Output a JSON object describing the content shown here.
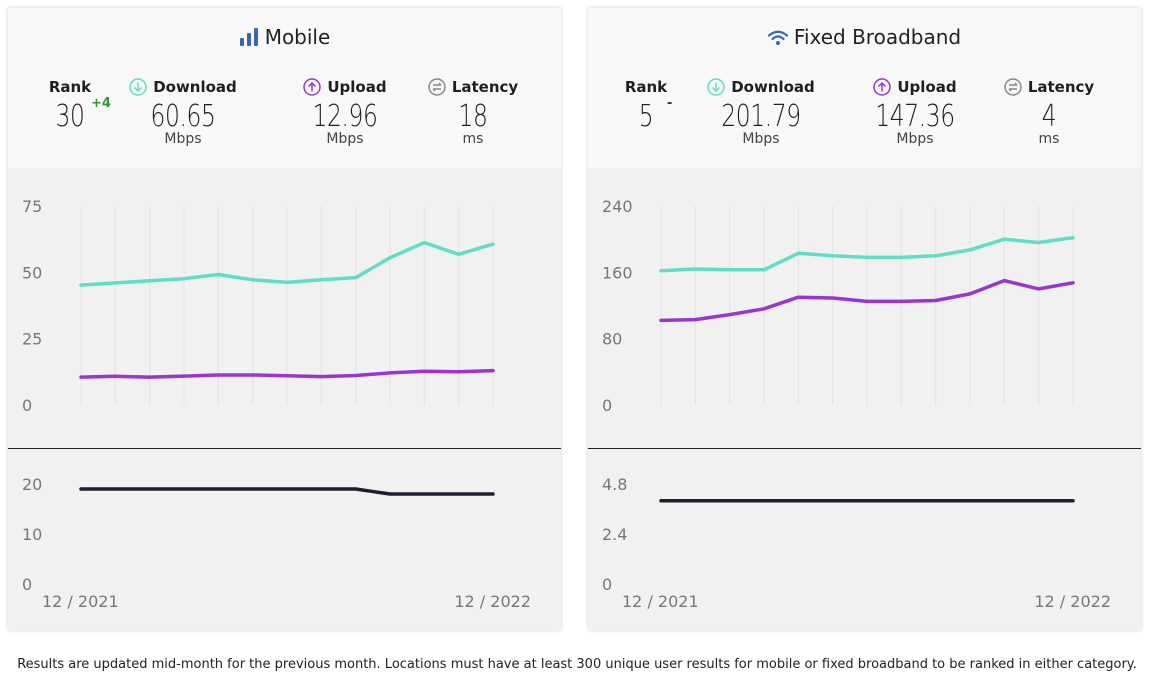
{
  "footnote": "Results are updated mid-month for the previous month. Locations must have at least 300 unique user results for mobile or fixed broadband to be ranked in either category.",
  "colors": {
    "download": "#5fddc6",
    "upload": "#9a35d0",
    "latency": "#1e1e2e",
    "rank_up": "#2e9a2e",
    "title_icon": "#3566b8"
  },
  "panels": [
    {
      "title": "Mobile",
      "title_icon": "signal-bars-icon",
      "rank": {
        "label": "Rank",
        "value": "30",
        "change": "+4"
      },
      "download": {
        "label": "Download",
        "value": "60.65",
        "unit": "Mbps"
      },
      "upload": {
        "label": "Upload",
        "value": "12.96",
        "unit": "Mbps"
      },
      "latency": {
        "label": "Latency",
        "value": "18",
        "unit": "ms"
      },
      "x_labels": [
        "12 / 2021",
        "12 / 2022"
      ]
    },
    {
      "title": "Fixed Broadband",
      "title_icon": "wifi-icon",
      "rank": {
        "label": "Rank",
        "value": "5",
        "change": "-"
      },
      "download": {
        "label": "Download",
        "value": "201.79",
        "unit": "Mbps"
      },
      "upload": {
        "label": "Upload",
        "value": "147.36",
        "unit": "Mbps"
      },
      "latency": {
        "label": "Latency",
        "value": "4",
        "unit": "ms"
      },
      "x_labels": [
        "12 / 2021",
        "12 / 2022"
      ]
    }
  ],
  "chart_data": [
    {
      "type": "line",
      "panel": "Mobile speeds",
      "x": [
        "12/2021",
        "1/2022",
        "2/2022",
        "3/2022",
        "4/2022",
        "5/2022",
        "6/2022",
        "7/2022",
        "8/2022",
        "9/2022",
        "10/2022",
        "11/2022",
        "12/2022"
      ],
      "ylim": [
        0,
        75
      ],
      "yticks": [
        0,
        25,
        50,
        75
      ],
      "grid": true,
      "series": [
        {
          "values": [
            45.2,
            46.0,
            46.8,
            47.6,
            49.2,
            47.2,
            46.2,
            47.2,
            48.0,
            55.5,
            61.2,
            56.8,
            60.65
          ]
        },
        {
          "values": [
            10.5,
            10.8,
            10.5,
            10.9,
            11.3,
            11.3,
            11.0,
            10.7,
            11.1,
            12.1,
            12.7,
            12.5,
            12.96
          ]
        }
      ]
    },
    {
      "type": "line",
      "panel": "Mobile latency",
      "x": [
        "12/2021",
        "1/2022",
        "2/2022",
        "3/2022",
        "4/2022",
        "5/2022",
        "6/2022",
        "7/2022",
        "8/2022",
        "9/2022",
        "10/2022",
        "11/2022",
        "12/2022"
      ],
      "ylim": [
        0,
        20
      ],
      "yticks": [
        0,
        10,
        20
      ],
      "series": [
        {
          "values": [
            19,
            19,
            19,
            19,
            19,
            19,
            19,
            19,
            19,
            18,
            18,
            18,
            18
          ]
        }
      ]
    },
    {
      "type": "line",
      "panel": "Fixed Broadband speeds",
      "x": [
        "12/2021",
        "1/2022",
        "2/2022",
        "3/2022",
        "4/2022",
        "5/2022",
        "6/2022",
        "7/2022",
        "8/2022",
        "9/2022",
        "10/2022",
        "11/2022",
        "12/2022"
      ],
      "ylim": [
        0,
        240
      ],
      "yticks": [
        0,
        80,
        160,
        240
      ],
      "grid": true,
      "series": [
        {
          "values": [
            162,
            164,
            163,
            163,
            183,
            180,
            178,
            178,
            180,
            187,
            200,
            196,
            201.79
          ]
        },
        {
          "values": [
            102,
            103,
            109,
            116,
            130,
            129,
            125,
            125,
            126,
            134,
            150,
            140,
            147.36
          ]
        }
      ]
    },
    {
      "type": "line",
      "panel": "Fixed Broadband latency",
      "x": [
        "12/2021",
        "1/2022",
        "2/2022",
        "3/2022",
        "4/2022",
        "5/2022",
        "6/2022",
        "7/2022",
        "8/2022",
        "9/2022",
        "10/2022",
        "11/2022",
        "12/2022"
      ],
      "ylim": [
        0,
        4.8
      ],
      "yticks": [
        0,
        2.4,
        4.8
      ],
      "series": [
        {
          "values": [
            4,
            4,
            4,
            4,
            4,
            4,
            4,
            4,
            4,
            4,
            4,
            4,
            4
          ]
        }
      ]
    }
  ]
}
